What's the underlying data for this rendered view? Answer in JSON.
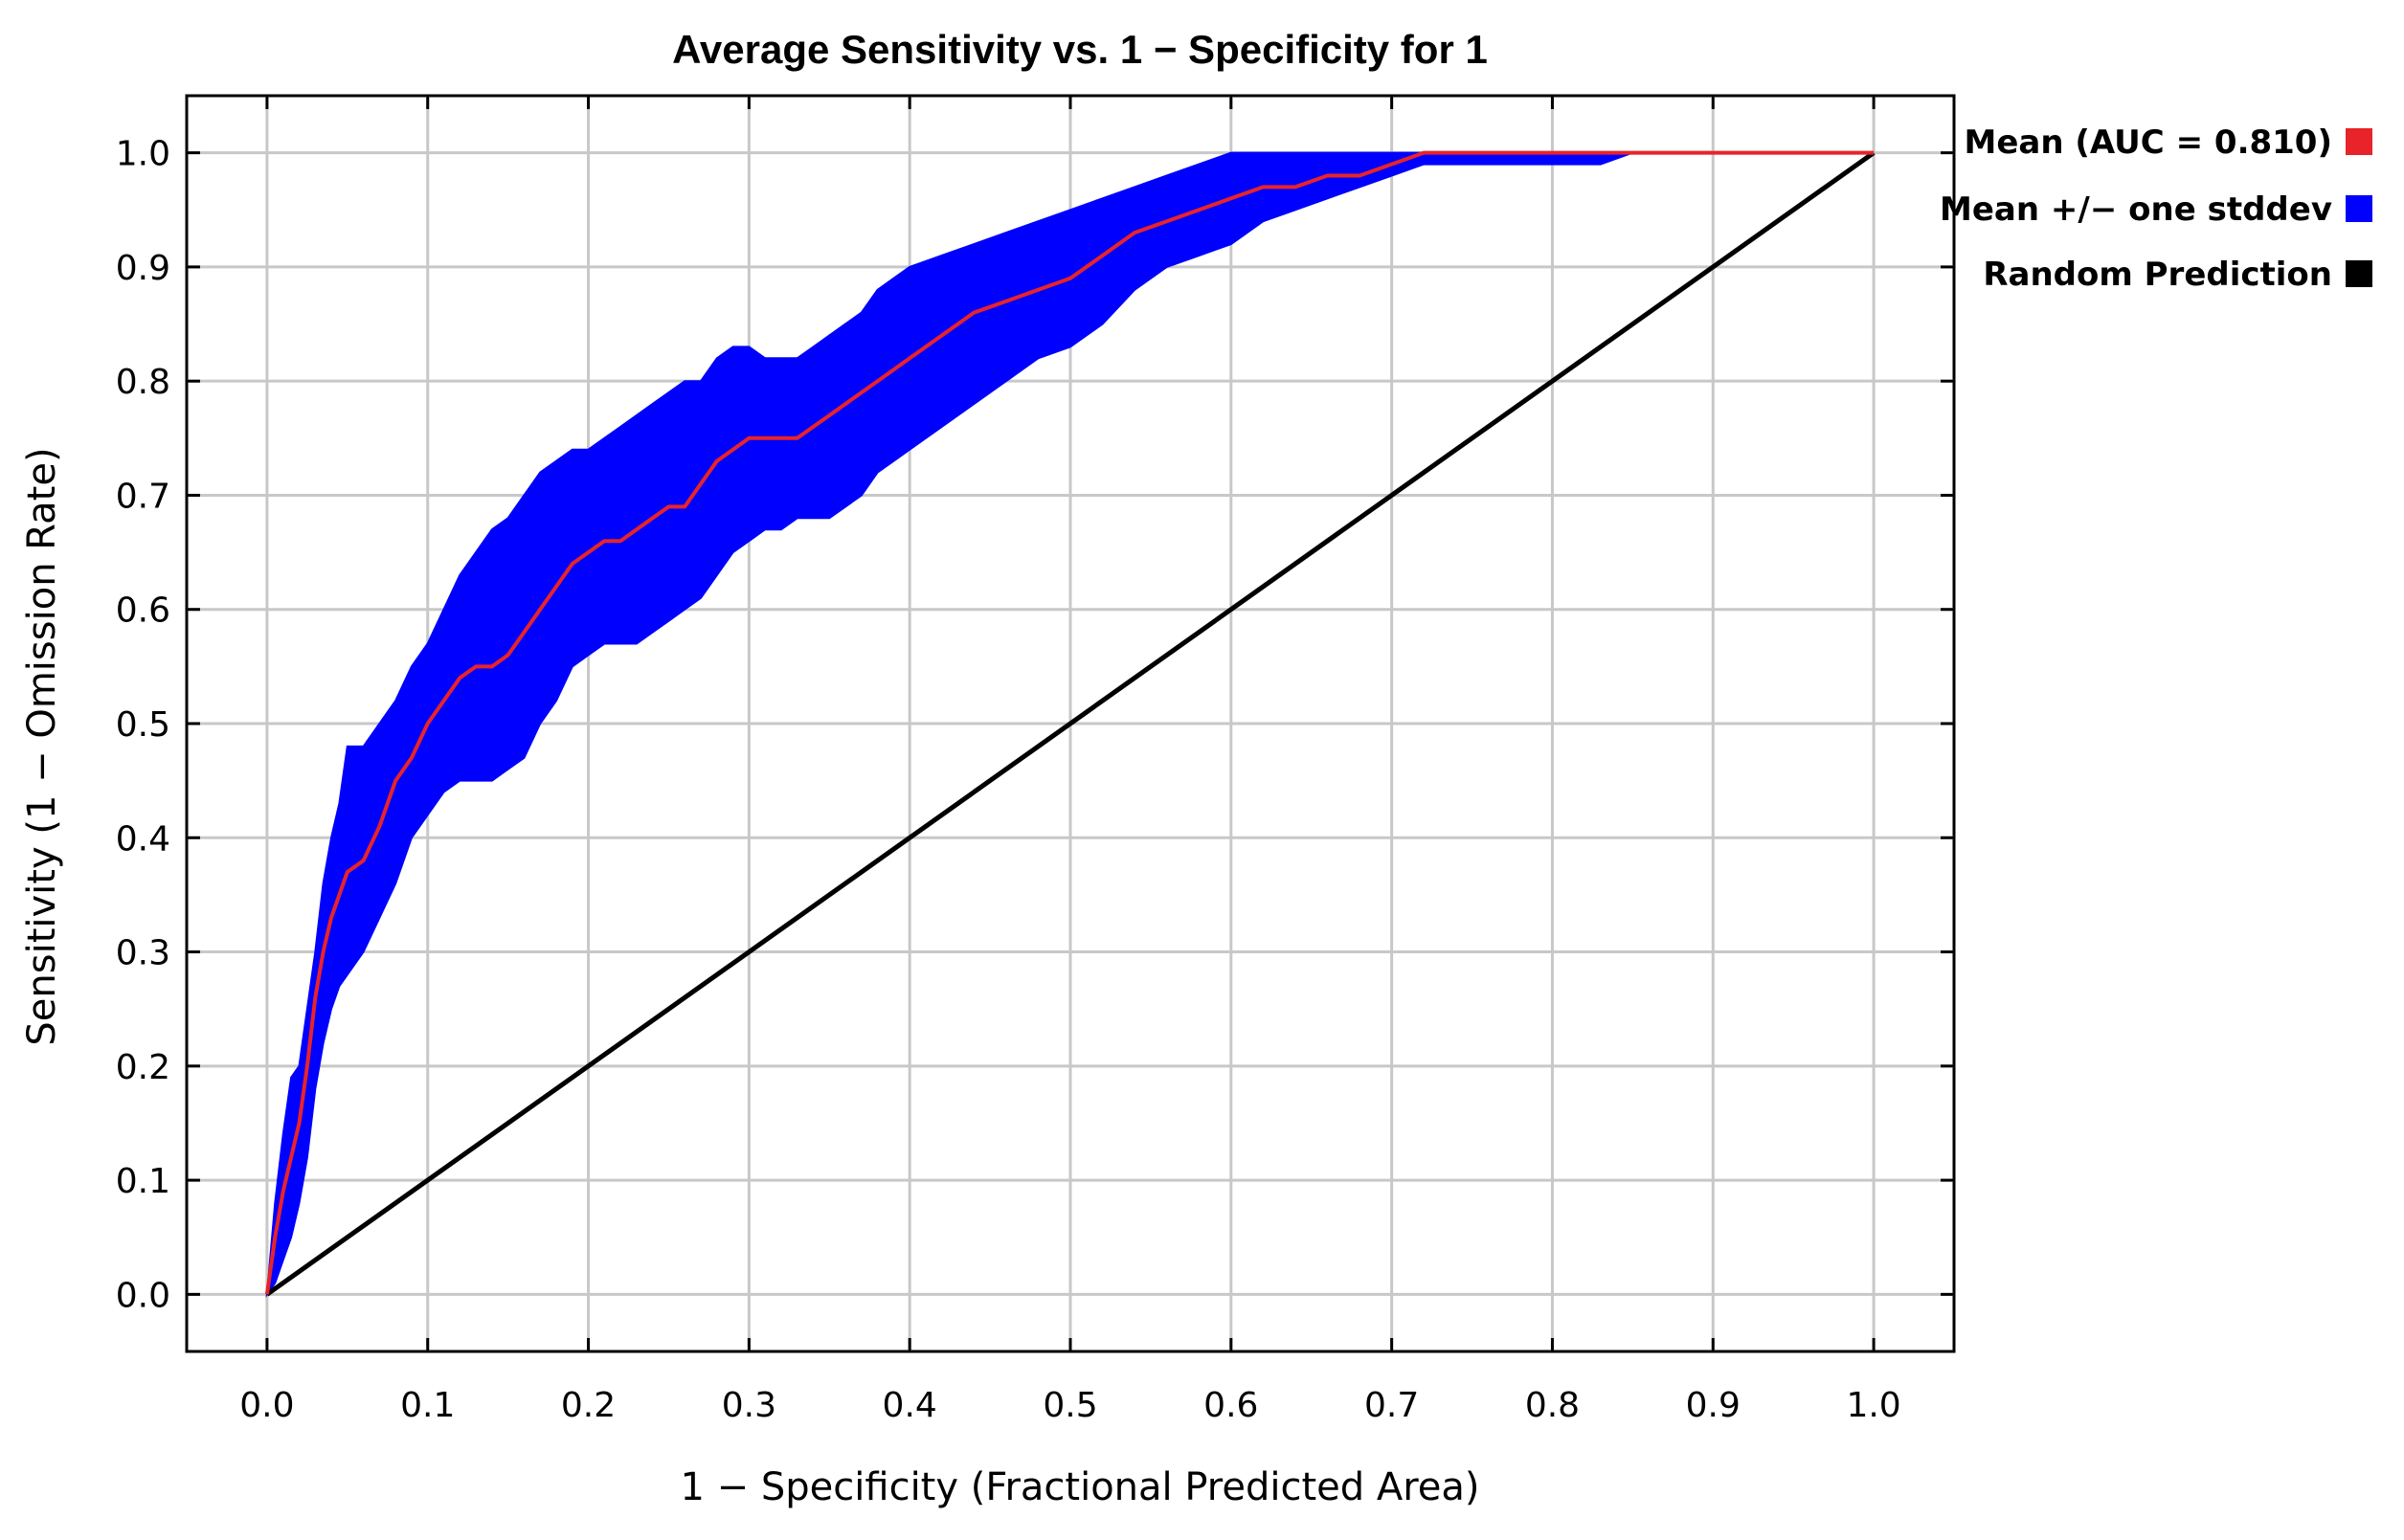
{
  "chart_data": {
    "type": "line",
    "title": "Average Sensitivity vs. 1 − Specificity for 1",
    "xlabel": "1 − Specificity (Fractional Predicted Area)",
    "ylabel": "Sensitivity (1 − Omission Rate)",
    "xlim": [
      -0.05,
      1.05
    ],
    "ylim": [
      -0.05,
      1.05
    ],
    "x_ticks": [
      "0.0",
      "0.1",
      "0.2",
      "0.3",
      "0.4",
      "0.5",
      "0.6",
      "0.7",
      "0.8",
      "0.9",
      "1.0"
    ],
    "y_ticks": [
      "0.0",
      "0.1",
      "0.2",
      "0.3",
      "0.4",
      "0.5",
      "0.6",
      "0.7",
      "0.8",
      "0.9",
      "1.0"
    ],
    "grid": true,
    "legend_position": "right-top",
    "series": [
      {
        "name": "Mean (AUC = 0.810)",
        "color": "#e8232a",
        "x": [
          0.0,
          0.005,
          0.01,
          0.015,
          0.02,
          0.025,
          0.03,
          0.035,
          0.04,
          0.045,
          0.05,
          0.06,
          0.07,
          0.08,
          0.09,
          0.1,
          0.11,
          0.12,
          0.13,
          0.14,
          0.15,
          0.16,
          0.17,
          0.18,
          0.19,
          0.2,
          0.21,
          0.22,
          0.23,
          0.24,
          0.25,
          0.26,
          0.27,
          0.28,
          0.29,
          0.3,
          0.31,
          0.32,
          0.33,
          0.34,
          0.35,
          0.36,
          0.37,
          0.38,
          0.39,
          0.4,
          0.42,
          0.44,
          0.46,
          0.48,
          0.5,
          0.52,
          0.54,
          0.56,
          0.58,
          0.6,
          0.62,
          0.64,
          0.66,
          0.68,
          0.7,
          0.72,
          0.75,
          0.8,
          0.85,
          0.9,
          0.95,
          1.0
        ],
        "y": [
          0.0,
          0.05,
          0.09,
          0.12,
          0.15,
          0.2,
          0.26,
          0.3,
          0.33,
          0.35,
          0.37,
          0.38,
          0.41,
          0.45,
          0.47,
          0.5,
          0.52,
          0.54,
          0.55,
          0.55,
          0.56,
          0.58,
          0.6,
          0.62,
          0.64,
          0.65,
          0.66,
          0.66,
          0.67,
          0.68,
          0.69,
          0.69,
          0.71,
          0.73,
          0.74,
          0.75,
          0.75,
          0.75,
          0.75,
          0.76,
          0.77,
          0.78,
          0.79,
          0.8,
          0.81,
          0.82,
          0.84,
          0.86,
          0.87,
          0.88,
          0.89,
          0.91,
          0.93,
          0.94,
          0.95,
          0.96,
          0.97,
          0.97,
          0.98,
          0.98,
          0.99,
          1.0,
          1.0,
          1.0,
          1.0,
          1.0,
          1.0,
          1.0
        ]
      },
      {
        "name": "Mean +/− one stddev",
        "color": "#0000ff",
        "x": [
          0.0,
          0.005,
          0.01,
          0.015,
          0.02,
          0.025,
          0.03,
          0.035,
          0.04,
          0.045,
          0.05,
          0.06,
          0.07,
          0.08,
          0.09,
          0.1,
          0.11,
          0.12,
          0.13,
          0.14,
          0.15,
          0.16,
          0.17,
          0.18,
          0.19,
          0.2,
          0.21,
          0.22,
          0.23,
          0.24,
          0.25,
          0.26,
          0.27,
          0.28,
          0.29,
          0.3,
          0.31,
          0.32,
          0.33,
          0.34,
          0.35,
          0.36,
          0.37,
          0.38,
          0.39,
          0.4,
          0.42,
          0.44,
          0.46,
          0.48,
          0.5,
          0.52,
          0.54,
          0.56,
          0.58,
          0.6,
          0.62,
          0.64,
          0.66,
          0.68,
          0.7,
          0.72,
          0.75,
          0.8,
          0.83,
          0.85,
          0.9,
          0.95,
          1.0
        ],
        "upper": [
          0.0,
          0.08,
          0.14,
          0.19,
          0.2,
          0.25,
          0.3,
          0.36,
          0.4,
          0.43,
          0.48,
          0.48,
          0.5,
          0.52,
          0.55,
          0.57,
          0.6,
          0.63,
          0.65,
          0.67,
          0.68,
          0.7,
          0.72,
          0.73,
          0.74,
          0.74,
          0.75,
          0.76,
          0.77,
          0.78,
          0.79,
          0.8,
          0.8,
          0.82,
          0.83,
          0.83,
          0.82,
          0.82,
          0.82,
          0.83,
          0.84,
          0.85,
          0.86,
          0.88,
          0.89,
          0.9,
          0.91,
          0.92,
          0.93,
          0.94,
          0.95,
          0.96,
          0.97,
          0.98,
          0.99,
          1.0,
          1.0,
          1.0,
          1.0,
          1.0,
          1.0,
          1.0,
          1.0,
          1.0,
          1.0,
          1.0,
          1.0,
          1.0,
          1.0
        ],
        "lower": [
          0.0,
          0.01,
          0.03,
          0.05,
          0.08,
          0.12,
          0.18,
          0.22,
          0.25,
          0.27,
          0.28,
          0.3,
          0.33,
          0.36,
          0.4,
          0.42,
          0.44,
          0.45,
          0.45,
          0.45,
          0.46,
          0.47,
          0.5,
          0.52,
          0.55,
          0.56,
          0.57,
          0.57,
          0.57,
          0.58,
          0.59,
          0.6,
          0.61,
          0.63,
          0.65,
          0.66,
          0.67,
          0.67,
          0.68,
          0.68,
          0.68,
          0.69,
          0.7,
          0.72,
          0.73,
          0.74,
          0.76,
          0.78,
          0.8,
          0.82,
          0.83,
          0.85,
          0.88,
          0.9,
          0.91,
          0.92,
          0.94,
          0.95,
          0.96,
          0.97,
          0.98,
          0.99,
          0.99,
          0.99,
          0.99,
          1.0,
          1.0,
          1.0,
          1.0
        ]
      },
      {
        "name": "Random Prediction",
        "color": "#000000",
        "x": [
          0.0,
          1.0
        ],
        "y": [
          0.0,
          1.0
        ]
      }
    ]
  }
}
